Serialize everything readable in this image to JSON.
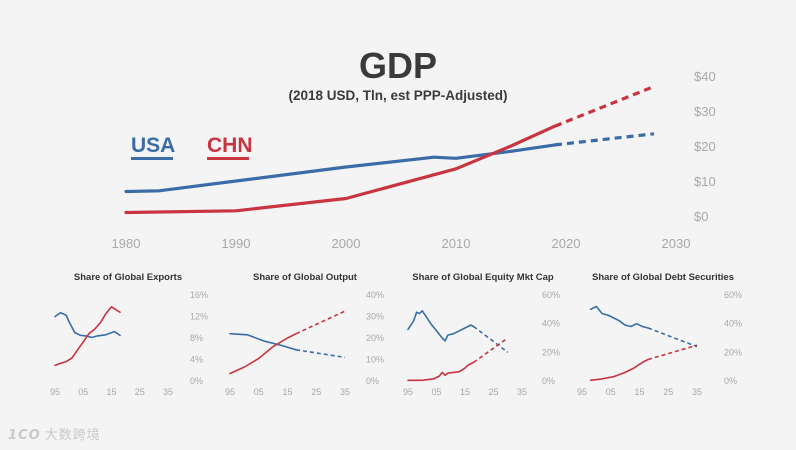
{
  "colors": {
    "usa": "#3a6da8",
    "chn": "#c8343f",
    "axis_text": "#a8a8a8",
    "title": "#3a3a3a"
  },
  "chart_data": [
    {
      "type": "line",
      "title": "GDP",
      "subtitle": "(2018 USD, Tln, est PPP-Adjusted)",
      "xlim": [
        1980,
        2030
      ],
      "ylim": [
        0,
        40
      ],
      "xticks": [
        "1980",
        "1990",
        "2000",
        "2010",
        "2020",
        "2030"
      ],
      "yticks": [
        "$0",
        "$10",
        "$20",
        "$30",
        "$40"
      ],
      "legend": [
        "USA",
        "CHN"
      ],
      "series": [
        {
          "name": "USA",
          "color": "#3a6da8",
          "actual": [
            [
              1980,
              7
            ],
            [
              1983,
              7.2
            ],
            [
              1990,
              10
            ],
            [
              2000,
              14
            ],
            [
              2008,
              16.8
            ],
            [
              2010,
              16.5
            ],
            [
              2015,
              18.5
            ],
            [
              2019,
              20.3
            ]
          ],
          "projected": [
            [
              2019,
              20.3
            ],
            [
              2028,
              23.5
            ]
          ]
        },
        {
          "name": "CHN",
          "color": "#c8343f",
          "actual": [
            [
              1980,
              1
            ],
            [
              1990,
              1.5
            ],
            [
              2000,
              5
            ],
            [
              2010,
              13.5
            ],
            [
              2015,
              20
            ],
            [
              2019,
              25.7
            ]
          ],
          "projected": [
            [
              2019,
              25.7
            ],
            [
              2028,
              37
            ]
          ]
        }
      ]
    },
    {
      "type": "line",
      "title": "Share of Global Exports",
      "xticks": [
        "95",
        "05",
        "15",
        "25",
        "35"
      ],
      "yticks": [
        "0%",
        "4%",
        "8%",
        "12%",
        "16%"
      ],
      "xlim": [
        1995,
        2035
      ],
      "ylim": [
        0,
        16
      ],
      "series": [
        {
          "name": "USA",
          "color": "#3a6da8",
          "actual": [
            [
              1995,
              12
            ],
            [
              1997,
              12.7
            ],
            [
              1999,
              12.2
            ],
            [
              2000,
              11
            ],
            [
              2002,
              9
            ],
            [
              2004,
              8.5
            ],
            [
              2006,
              8.4
            ],
            [
              2008,
              8.1
            ],
            [
              2010,
              8.4
            ],
            [
              2013,
              8.6
            ],
            [
              2016,
              9.2
            ],
            [
              2018,
              8.5
            ]
          ],
          "projected": []
        },
        {
          "name": "CHN",
          "color": "#c8343f",
          "actual": [
            [
              1995,
              2.9
            ],
            [
              1997,
              3.3
            ],
            [
              1999,
              3.6
            ],
            [
              2001,
              4.3
            ],
            [
              2003,
              5.8
            ],
            [
              2005,
              7.3
            ],
            [
              2007,
              8.8
            ],
            [
              2009,
              9.6
            ],
            [
              2011,
              10.8
            ],
            [
              2013,
              12.5
            ],
            [
              2015,
              13.8
            ],
            [
              2017,
              13.1
            ],
            [
              2018,
              12.8
            ]
          ],
          "projected": []
        }
      ]
    },
    {
      "type": "line",
      "title": "Share of Global Output",
      "xticks": [
        "95",
        "05",
        "15",
        "25",
        "35"
      ],
      "yticks": [
        "0%",
        "10%",
        "20%",
        "30%",
        "40%"
      ],
      "xlim": [
        1995,
        2035
      ],
      "ylim": [
        0,
        40
      ],
      "series": [
        {
          "name": "USA",
          "color": "#3a6da8",
          "actual": [
            [
              1995,
              22
            ],
            [
              2001,
              21.5
            ],
            [
              2007,
              18.5
            ],
            [
              2013,
              16.5
            ],
            [
              2018,
              14.5
            ]
          ],
          "projected": [
            [
              2018,
              14.5
            ],
            [
              2035,
              11
            ]
          ]
        },
        {
          "name": "CHN",
          "color": "#c8343f",
          "actual": [
            [
              1995,
              3.5
            ],
            [
              2000,
              6.5
            ],
            [
              2005,
              10.5
            ],
            [
              2010,
              16
            ],
            [
              2015,
              20
            ],
            [
              2018,
              22
            ]
          ],
          "projected": [
            [
              2018,
              22
            ],
            [
              2035,
              32.5
            ]
          ]
        }
      ]
    },
    {
      "type": "line",
      "title": "Share of Global Equity Mkt Cap",
      "xticks": [
        "95",
        "05",
        "15",
        "25",
        "35"
      ],
      "yticks": [
        "0%",
        "20%",
        "40%",
        "60%"
      ],
      "xlim": [
        1995,
        2035
      ],
      "ylim": [
        0,
        60
      ],
      "series": [
        {
          "name": "USA",
          "color": "#3a6da8",
          "actual": [
            [
              1995,
              36
            ],
            [
              1997,
              42
            ],
            [
              1998,
              48
            ],
            [
              1999,
              47
            ],
            [
              2000,
              49
            ],
            [
              2001,
              46
            ],
            [
              2003,
              40
            ],
            [
              2005,
              35
            ],
            [
              2007,
              30
            ],
            [
              2008,
              28
            ],
            [
              2009,
              32
            ],
            [
              2011,
              33
            ],
            [
              2013,
              35
            ],
            [
              2015,
              37
            ],
            [
              2017,
              39
            ],
            [
              2018,
              38
            ]
          ],
          "projected": [
            [
              2018,
              38
            ],
            [
              2030,
              20
            ]
          ]
        },
        {
          "name": "CHN",
          "color": "#c8343f",
          "actual": [
            [
              1995,
              0.5
            ],
            [
              2000,
              0.5
            ],
            [
              2002,
              1
            ],
            [
              2004,
              1.5
            ],
            [
              2006,
              3.5
            ],
            [
              2007,
              6
            ],
            [
              2008,
              4
            ],
            [
              2009,
              5.5
            ],
            [
              2011,
              6
            ],
            [
              2013,
              6.5
            ],
            [
              2015,
              9
            ],
            [
              2016,
              11
            ],
            [
              2018,
              13
            ]
          ],
          "projected": [
            [
              2018,
              13
            ],
            [
              2030,
              30
            ]
          ]
        }
      ]
    },
    {
      "type": "line",
      "title": "Share of Global Debt Securities",
      "xticks": [
        "95",
        "05",
        "15",
        "25",
        "35"
      ],
      "yticks": [
        "0%",
        "20%",
        "40%",
        "60%"
      ],
      "xlim": [
        1995,
        2035
      ],
      "ylim": [
        0,
        60
      ],
      "series": [
        {
          "name": "USA",
          "color": "#3a6da8",
          "actual": [
            [
              1998,
              50
            ],
            [
              2000,
              52
            ],
            [
              2002,
              47
            ],
            [
              2004,
              46
            ],
            [
              2006,
              44
            ],
            [
              2008,
              42
            ],
            [
              2010,
              39
            ],
            [
              2012,
              38
            ],
            [
              2014,
              40
            ],
            [
              2016,
              38
            ],
            [
              2018,
              37
            ]
          ],
          "projected": [
            [
              2018,
              37
            ],
            [
              2035,
              24
            ]
          ]
        },
        {
          "name": "CHN",
          "color": "#c8343f",
          "actual": [
            [
              1998,
              0.5
            ],
            [
              2002,
              1.5
            ],
            [
              2006,
              3
            ],
            [
              2010,
              6
            ],
            [
              2013,
              9
            ],
            [
              2016,
              13
            ],
            [
              2018,
              15
            ]
          ],
          "projected": [
            [
              2018,
              15
            ],
            [
              2035,
              25
            ]
          ]
        }
      ]
    }
  ],
  "watermark": {
    "logo": "1CO",
    "text": "大数跨境"
  }
}
